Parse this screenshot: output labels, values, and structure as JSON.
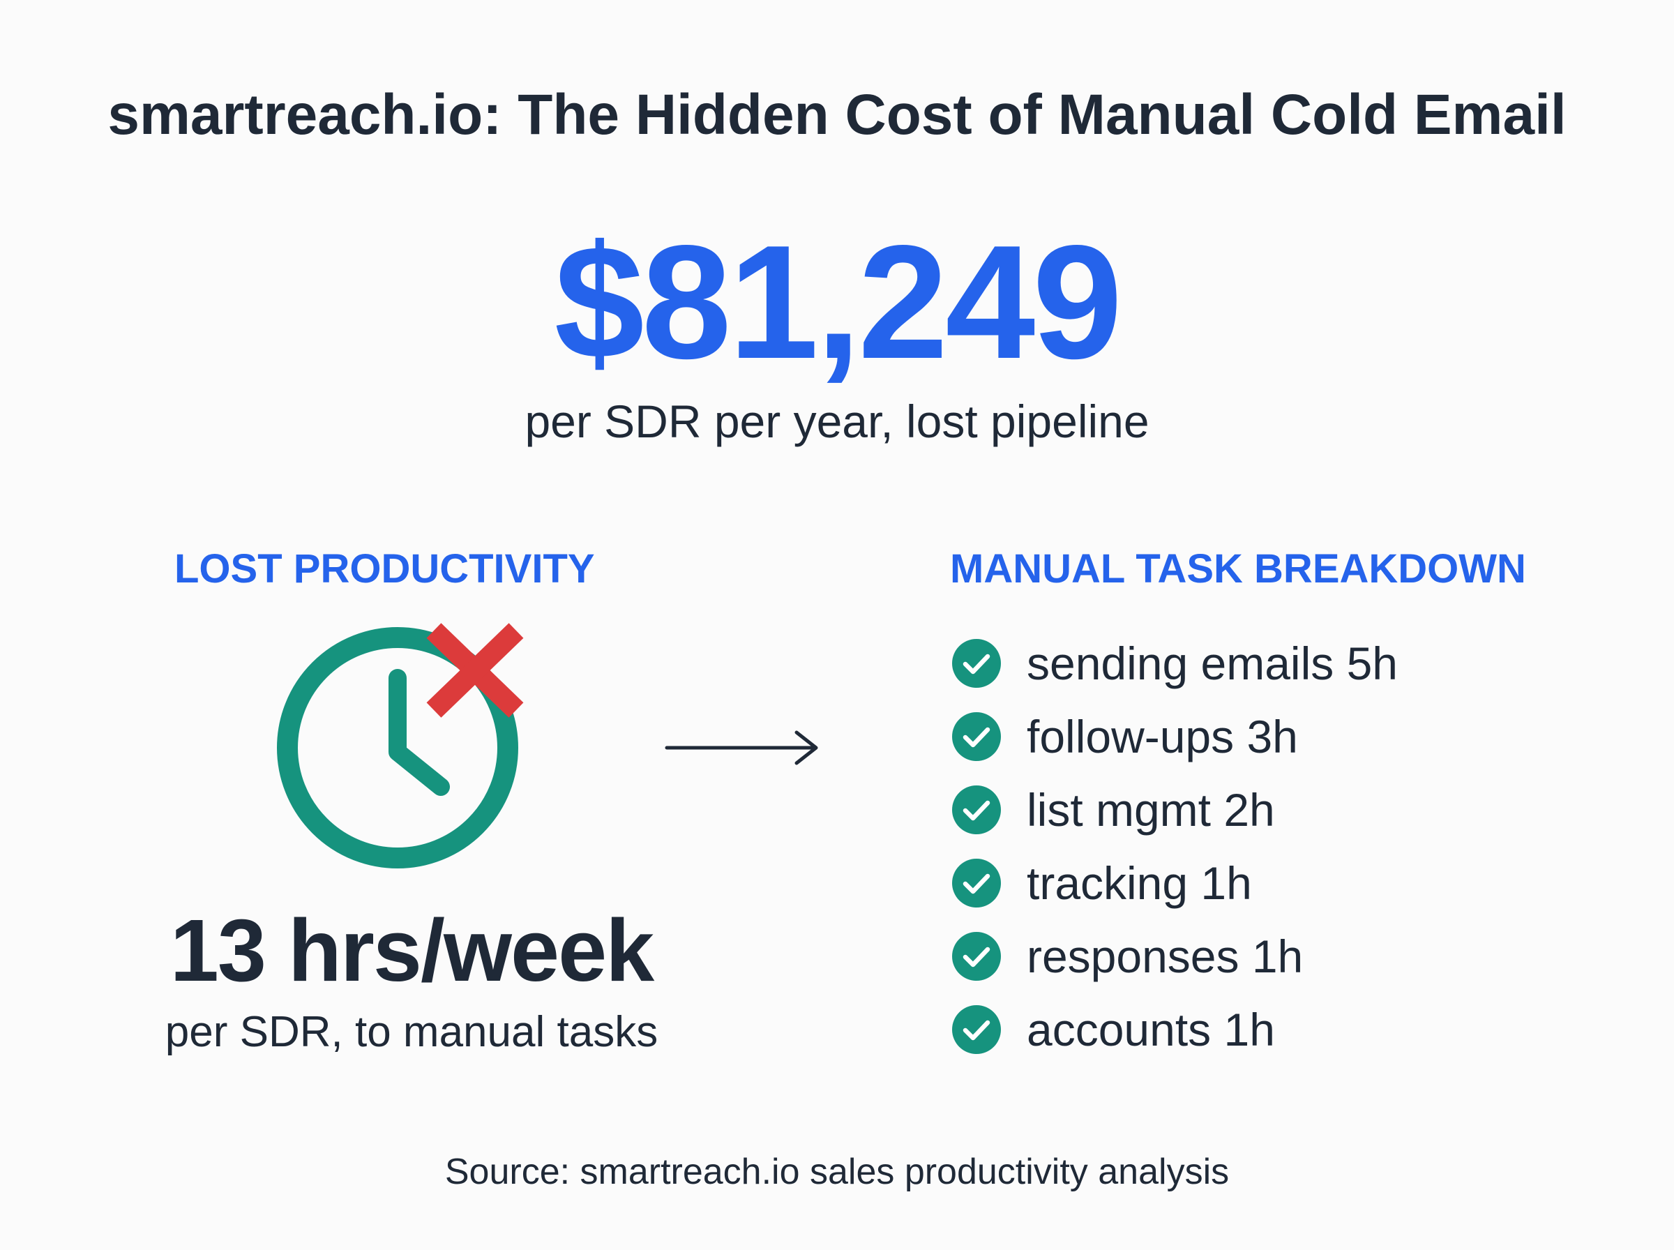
{
  "title": "smartreach.io: The Hidden Cost of Manual Cold Email",
  "headline_stat": {
    "value": "$81,249",
    "caption": "per SDR per year, lost pipeline"
  },
  "left_panel": {
    "heading": "LOST PRODUCTIVITY",
    "icon": "clock-with-x-icon",
    "stat": "13 hrs/week",
    "caption": "per SDR, to manual tasks"
  },
  "connector_icon": "arrow-right-icon",
  "right_panel": {
    "heading": "MANUAL TASK BREAKDOWN",
    "item_icon": "check-circle-icon",
    "items": [
      {
        "label": "sending emails 5h"
      },
      {
        "label": "follow-ups 3h"
      },
      {
        "label": "list mgmt 2h"
      },
      {
        "label": "tracking 1h"
      },
      {
        "label": "responses 1h"
      },
      {
        "label": "accounts 1h"
      }
    ]
  },
  "source": "Source: smartreach.io sales productivity analysis",
  "colors": {
    "accent_blue": "#2563eb",
    "teal": "#16937e",
    "red": "#dc3b3b",
    "text_dark": "#1f2937",
    "background": "#fbfbfb"
  }
}
